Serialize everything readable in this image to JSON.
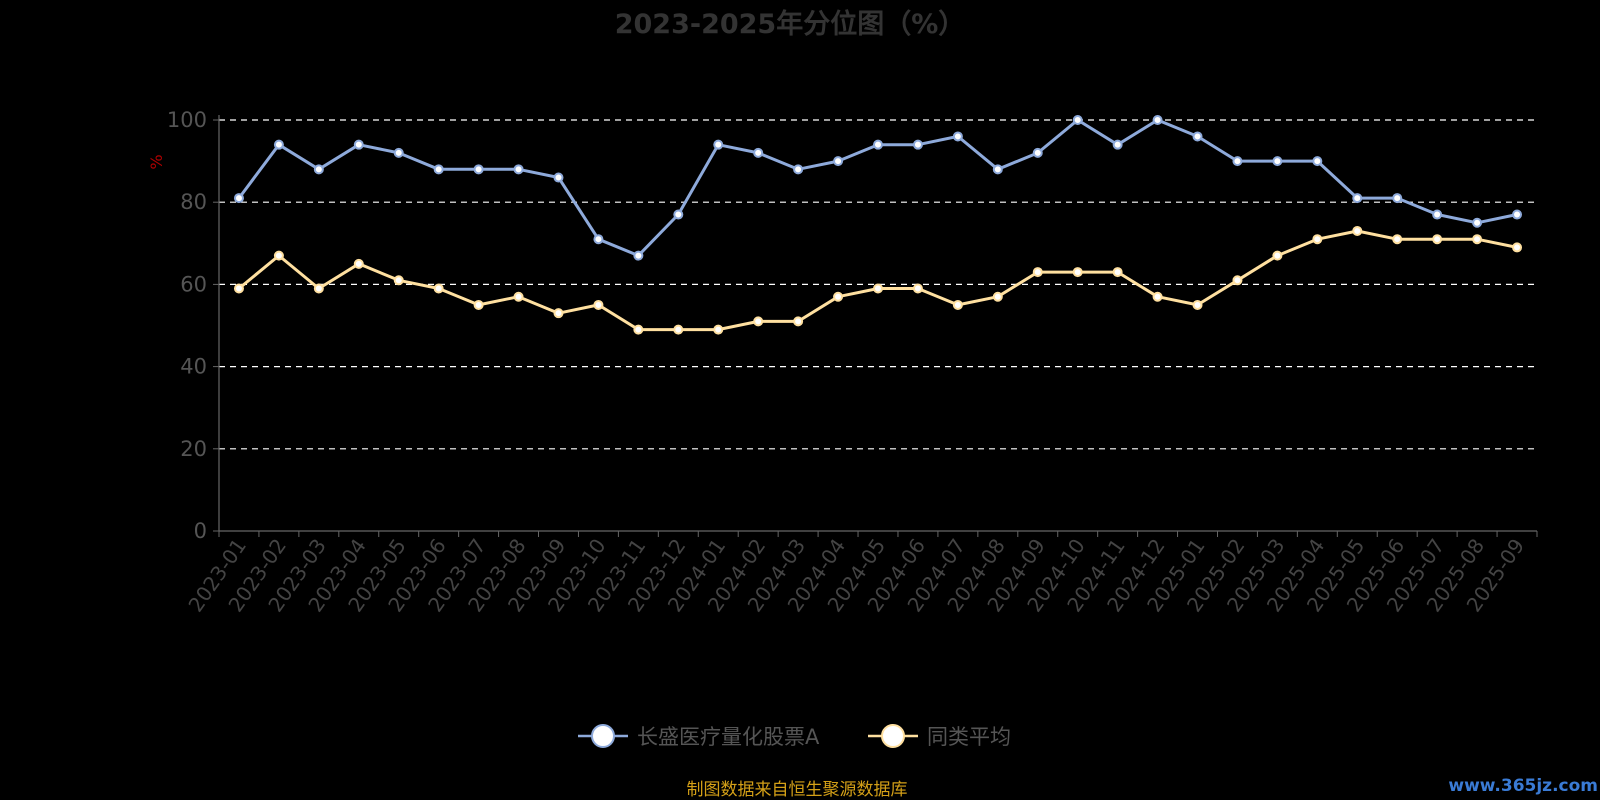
{
  "chart_data": {
    "type": "line",
    "title": "2023-2025年分位图（%）",
    "ylabel": "%",
    "ylim": [
      0,
      100
    ],
    "yticks": [
      0,
      20,
      40,
      60,
      80,
      100
    ],
    "grid": true,
    "legend_position": "bottom-center",
    "categories": [
      "2023-01",
      "2023-02",
      "2023-03",
      "2023-04",
      "2023-05",
      "2023-06",
      "2023-07",
      "2023-08",
      "2023-09",
      "2023-10",
      "2023-11",
      "2023-12",
      "2024-01",
      "2024-02",
      "2024-03",
      "2024-04",
      "2024-05",
      "2024-06",
      "2024-07",
      "2024-08",
      "2024-09",
      "2024-10",
      "2024-11",
      "2024-12",
      "2025-01",
      "2025-02",
      "2025-03",
      "2025-04",
      "2025-05",
      "2025-06",
      "2025-07",
      "2025-08",
      "2025-09"
    ],
    "series": [
      {
        "name": "长盛医疗量化股票A",
        "color": "#8eaadb",
        "values": [
          81,
          94,
          88,
          94,
          92,
          88,
          88,
          88,
          86,
          71,
          67,
          77,
          94,
          92,
          88,
          90,
          94,
          94,
          96,
          88,
          92,
          100,
          94,
          100,
          96,
          90,
          90,
          90,
          81,
          81,
          77,
          75,
          77
        ]
      },
      {
        "name": "同类平均",
        "color": "#ffe0a0",
        "values": [
          59,
          67,
          59,
          65,
          61,
          59,
          55,
          57,
          53,
          55,
          49,
          49,
          49,
          51,
          51,
          57,
          59,
          59,
          55,
          57,
          63,
          63,
          63,
          57,
          55,
          61,
          67,
          71,
          73,
          71,
          71,
          71,
          69
        ]
      }
    ]
  },
  "footer": {
    "source": "制图数据来自恒生聚源数据库",
    "watermark": "www.365jz.com"
  },
  "colors": {
    "background": "#000000",
    "grid": "#ffffff",
    "axis": "#666666"
  }
}
